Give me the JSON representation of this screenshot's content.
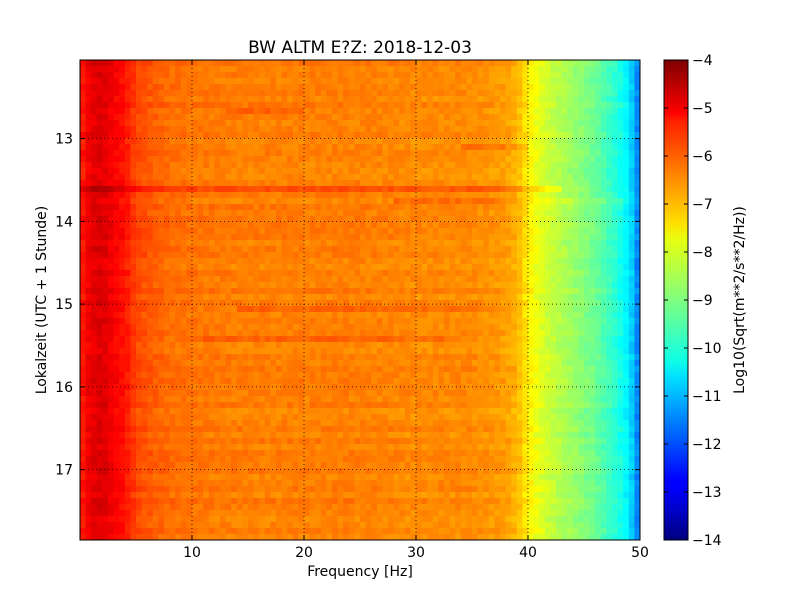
{
  "chart_data": {
    "type": "heatmap",
    "title": "BW ALTM E?Z: 2018-12-03",
    "xlabel": "Frequency [Hz]",
    "ylabel": "Lokalzeit (UTC + 1 Stunde)",
    "colorbar_label": "Log10(Sqrt(m**2/s**2/Hz))",
    "colormap": "jet",
    "grid": true,
    "xlim": [
      0,
      50
    ],
    "ylim": [
      17.85,
      12.05
    ],
    "clim": [
      -14,
      -4
    ],
    "x_ticks": [
      10,
      20,
      30,
      40,
      50
    ],
    "x_tick_labels": [
      "10",
      "20",
      "30",
      "40",
      "50"
    ],
    "y_ticks": [
      13,
      14,
      15,
      16,
      17
    ],
    "y_tick_labels": [
      "13",
      "14",
      "15",
      "16",
      "17"
    ],
    "colorbar_ticks": [
      -4,
      -5,
      -6,
      -7,
      -8,
      -9,
      -10,
      -11,
      -12,
      -13,
      -14
    ],
    "colorbar_tick_labels": [
      "−4",
      "−5",
      "−6",
      "−7",
      "−8",
      "−9",
      "−10",
      "−11",
      "−12",
      "−13",
      "−14"
    ],
    "frequency_profile": {
      "frequency_hz": [
        0,
        1,
        2,
        3,
        4,
        5,
        6,
        8,
        10,
        15,
        20,
        25,
        30,
        35,
        38,
        39,
        40,
        41,
        42,
        44,
        46,
        48,
        49,
        49.5,
        50
      ],
      "log10_psd": [
        -5.6,
        -5.0,
        -4.9,
        -5.2,
        -5.4,
        -5.9,
        -6.1,
        -6.3,
        -6.4,
        -6.5,
        -6.5,
        -6.5,
        -6.6,
        -6.6,
        -6.8,
        -7.0,
        -7.6,
        -8.0,
        -8.3,
        -8.7,
        -9.2,
        -9.9,
        -10.4,
        -11.0,
        -11.8
      ]
    },
    "horizontal_features": [
      {
        "time": 13.6,
        "f_start": 0,
        "f_end": 43,
        "delta": 0.45
      },
      {
        "time": 13.77,
        "f_start": 28,
        "f_end": 50,
        "delta": 0.35
      },
      {
        "time": 15.08,
        "f_start": 14,
        "f_end": 38,
        "delta": 0.3
      },
      {
        "time": 15.45,
        "f_start": 10,
        "f_end": 33,
        "delta": 0.3
      },
      {
        "time": 12.65,
        "f_start": 13,
        "f_end": 20,
        "delta": 0.3
      },
      {
        "time": 13.08,
        "f_start": 34,
        "f_end": 40,
        "delta": 0.3
      }
    ]
  }
}
